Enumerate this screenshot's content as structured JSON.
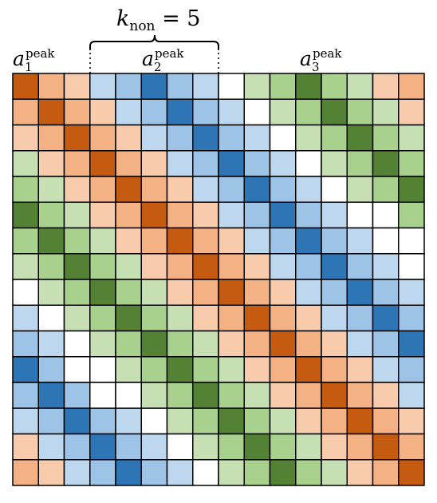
{
  "annotations": {
    "brace_label": {
      "base": "k",
      "sub": "non",
      "rest": " = 5"
    },
    "labels": [
      {
        "base": "a",
        "sub": "1",
        "sup": "peak"
      },
      {
        "base": "a",
        "sub": "2",
        "sup": "peak"
      },
      {
        "base": "a",
        "sub": "3",
        "sup": "peak"
      }
    ]
  },
  "palette": {
    "0": "#ffffff",
    "1": "#c6e0b4",
    "2": "#a9d18e",
    "3": "#548235",
    "4": "#bdd7ee",
    "5": "#9dc3e6",
    "6": "#2e75b6",
    "7": "#f8cbad",
    "8": "#f4b183",
    "9": "#c55a11"
  },
  "matrix": [
    [
      9,
      8,
      7,
      4,
      5,
      6,
      5,
      4,
      0,
      1,
      2,
      3,
      2,
      1,
      7,
      8
    ],
    [
      8,
      9,
      8,
      7,
      4,
      5,
      6,
      5,
      4,
      0,
      1,
      2,
      3,
      2,
      1,
      7
    ],
    [
      7,
      8,
      9,
      8,
      7,
      4,
      5,
      6,
      5,
      4,
      0,
      1,
      2,
      3,
      2,
      1
    ],
    [
      1,
      7,
      8,
      9,
      8,
      7,
      4,
      5,
      6,
      5,
      4,
      0,
      1,
      2,
      3,
      2
    ],
    [
      2,
      1,
      7,
      8,
      9,
      8,
      7,
      4,
      5,
      6,
      5,
      4,
      0,
      1,
      2,
      3
    ],
    [
      3,
      2,
      1,
      7,
      8,
      9,
      8,
      7,
      4,
      5,
      6,
      5,
      4,
      0,
      0,
      2
    ],
    [
      2,
      3,
      2,
      1,
      7,
      8,
      9,
      8,
      7,
      4,
      5,
      6,
      5,
      4,
      0,
      0
    ],
    [
      1,
      2,
      3,
      2,
      1,
      7,
      8,
      9,
      8,
      7,
      4,
      5,
      6,
      5,
      4,
      0
    ],
    [
      0,
      1,
      2,
      3,
      2,
      1,
      7,
      8,
      9,
      8,
      7,
      4,
      5,
      6,
      5,
      4
    ],
    [
      4,
      0,
      1,
      2,
      3,
      2,
      1,
      7,
      8,
      9,
      8,
      7,
      4,
      5,
      6,
      5
    ],
    [
      5,
      4,
      0,
      1,
      2,
      3,
      2,
      1,
      7,
      8,
      9,
      8,
      7,
      4,
      5,
      6
    ],
    [
      6,
      5,
      0,
      0,
      1,
      2,
      3,
      2,
      1,
      7,
      8,
      9,
      8,
      7,
      4,
      5
    ],
    [
      5,
      6,
      5,
      0,
      0,
      1,
      2,
      3,
      2,
      1,
      7,
      8,
      9,
      8,
      7,
      4
    ],
    [
      4,
      5,
      6,
      5,
      4,
      0,
      1,
      2,
      3,
      2,
      1,
      7,
      8,
      9,
      8,
      7
    ],
    [
      7,
      4,
      5,
      6,
      5,
      4,
      0,
      1,
      2,
      3,
      2,
      1,
      7,
      8,
      9,
      8
    ],
    [
      8,
      7,
      4,
      5,
      6,
      5,
      4,
      0,
      1,
      2,
      3,
      2,
      1,
      7,
      8,
      9
    ]
  ]
}
